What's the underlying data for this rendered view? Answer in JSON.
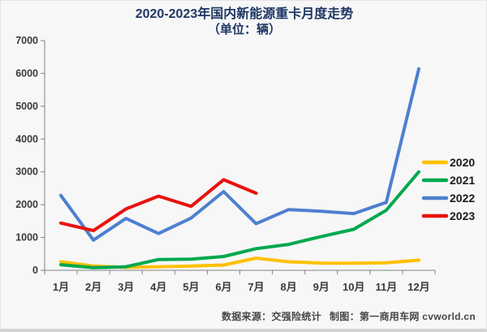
{
  "title": {
    "line1": "2020-2023年国内新能源重卡月度走势",
    "line2": "（单位：辆）"
  },
  "footer": {
    "source_label": "数据来源：交强险统计",
    "credit_label": "制图：第一商用车网 cvworld.cn"
  },
  "colors": {
    "background": "#F7F7F7",
    "title_text": "#1F3864",
    "axis": "#808080",
    "tick_label": "#3B3B3B",
    "legend_label": "#1A1A1A",
    "footer_text": "#474747",
    "series_2020": "#FFC000",
    "series_2021": "#00A84E",
    "series_2022": "#4E7FD0",
    "series_2023": "#E8120E"
  },
  "chart_data": {
    "type": "line",
    "categories": [
      "1月",
      "2月",
      "3月",
      "4月",
      "5月",
      "6月",
      "7月",
      "8月",
      "9月",
      "10月",
      "11月",
      "12月"
    ],
    "series": [
      {
        "name": "2020",
        "color": "#FFC000",
        "values": [
          260,
          130,
          90,
          110,
          130,
          160,
          370,
          260,
          220,
          215,
          230,
          310
        ]
      },
      {
        "name": "2021",
        "color": "#00A84E",
        "values": [
          170,
          80,
          110,
          330,
          340,
          420,
          660,
          790,
          1030,
          1250,
          1830,
          3000
        ]
      },
      {
        "name": "2022",
        "color": "#4E7FD0",
        "values": [
          2280,
          920,
          1580,
          1120,
          1590,
          2400,
          1420,
          1850,
          1800,
          1730,
          2070,
          6140
        ]
      },
      {
        "name": "2023",
        "color": "#E8120E",
        "values": [
          1440,
          1210,
          1870,
          2260,
          1950,
          2760,
          2350,
          null,
          null,
          null,
          null,
          null
        ]
      }
    ],
    "ylim": [
      0,
      7000
    ],
    "ytick_interval": 1000,
    "grid": false,
    "legend_position": "right"
  }
}
